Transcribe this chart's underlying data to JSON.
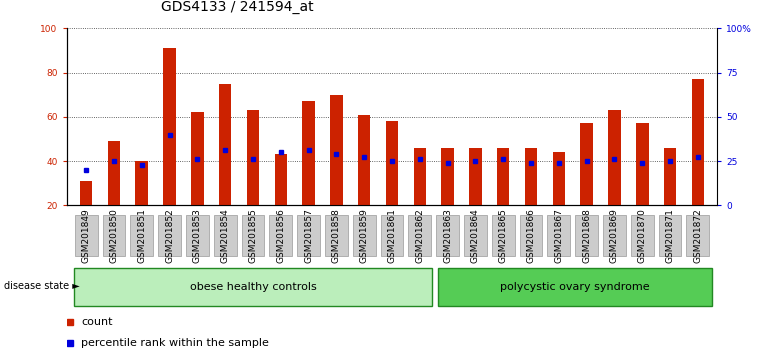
{
  "title": "GDS4133 / 241594_at",
  "samples": [
    "GSM201849",
    "GSM201850",
    "GSM201851",
    "GSM201852",
    "GSM201853",
    "GSM201854",
    "GSM201855",
    "GSM201856",
    "GSM201857",
    "GSM201858",
    "GSM201859",
    "GSM201861",
    "GSM201862",
    "GSM201863",
    "GSM201864",
    "GSM201865",
    "GSM201866",
    "GSM201867",
    "GSM201868",
    "GSM201869",
    "GSM201870",
    "GSM201871",
    "GSM201872"
  ],
  "bar_values": [
    31,
    49,
    40,
    91,
    62,
    75,
    63,
    43,
    67,
    70,
    61,
    58,
    46,
    46,
    46,
    46,
    46,
    44,
    57,
    63,
    57,
    46,
    77
  ],
  "percentile_values": [
    36,
    40,
    38,
    52,
    41,
    45,
    41,
    44,
    45,
    43,
    42,
    40,
    41,
    39,
    40,
    41,
    39,
    39,
    40,
    41,
    39,
    40,
    42
  ],
  "group1_label": "obese healthy controls",
  "group1_count": 13,
  "group2_label": "polycystic ovary syndrome",
  "group2_count": 10,
  "disease_state_label": "disease state",
  "ymin": 20,
  "ymax": 100,
  "yticks_left": [
    20,
    40,
    60,
    80,
    100
  ],
  "yticks_right": [
    0,
    25,
    50,
    75,
    100
  ],
  "yticklabels_right": [
    "0",
    "25",
    "50",
    "75",
    "100%"
  ],
  "bar_color": "#cc2200",
  "percentile_color": "#0000dd",
  "grid_color": "#333333",
  "group1_fill": "#bbeebb",
  "group2_fill": "#55cc55",
  "group_border": "#228822",
  "tickbox_color": "#cccccc",
  "tickbox_border": "#999999",
  "bg_color": "#ffffff",
  "title_fontsize": 10,
  "tick_fontsize": 6.5,
  "label_fontsize": 8,
  "legend_fontsize": 8,
  "bar_width": 0.45
}
